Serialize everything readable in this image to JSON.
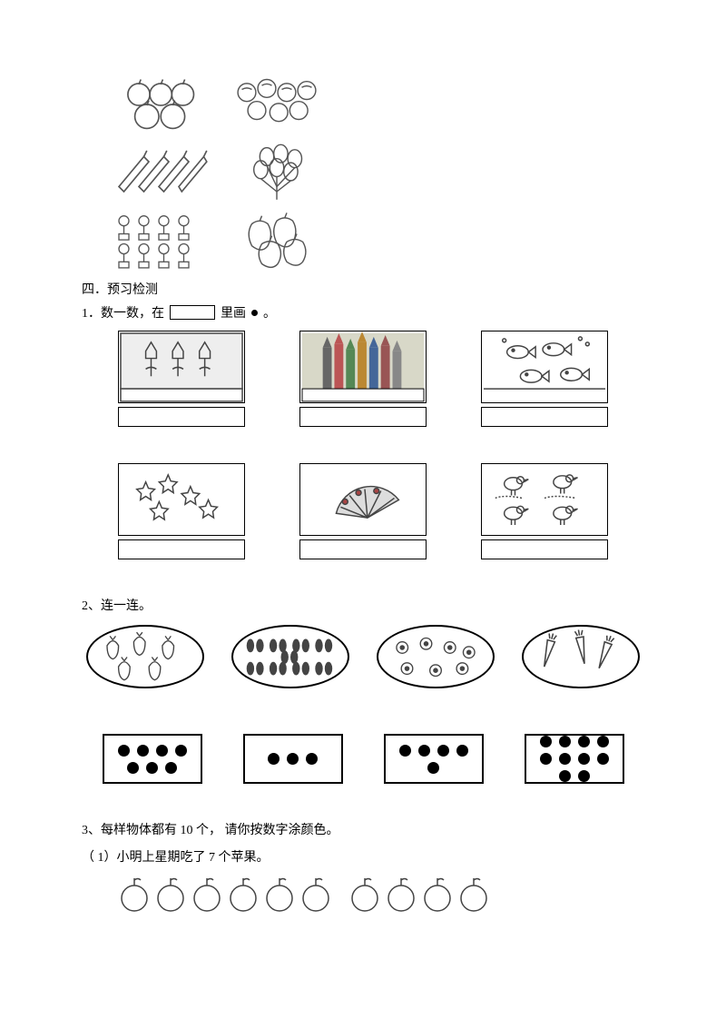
{
  "section4_title": "四．预习检测",
  "q1": {
    "prefix": "1．数一数，在",
    "suffix": "里画",
    "tail": "。"
  },
  "q2_title": "2、连一连。",
  "q2_dots": [
    7,
    3,
    5,
    10
  ],
  "q3_title": "3、每样物体都有 10 个， 请你按数字涂颜色。",
  "q3_sub1": "（ 1）小明上星期吃了 7 个苹果。",
  "q3_apple_count": 10,
  "colors": {
    "stroke": "#444444",
    "gray": "#888888",
    "pencil": [
      "#555",
      "#c44",
      "#4a6",
      "#c94",
      "#47a",
      "#a4a",
      "#777"
    ]
  }
}
